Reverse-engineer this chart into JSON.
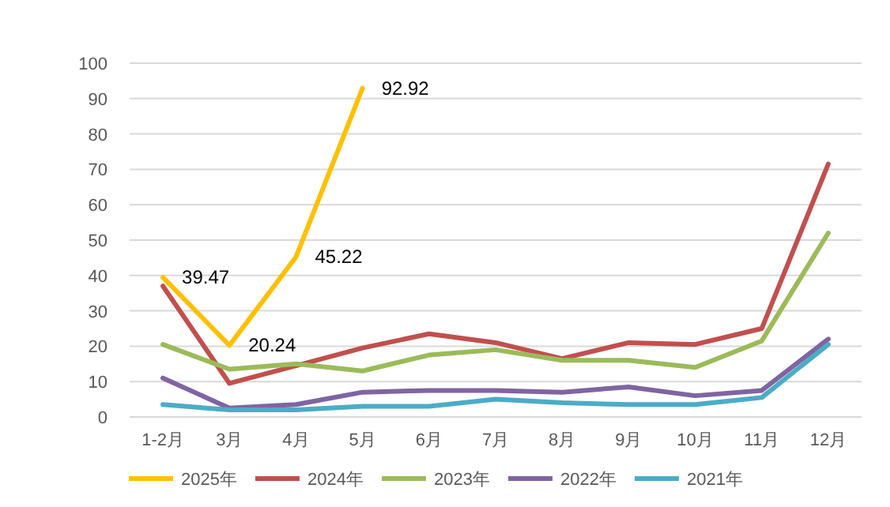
{
  "chart_data": {
    "type": "line",
    "categories": [
      "1-2月",
      "3月",
      "4月",
      "5月",
      "6月",
      "7月",
      "8月",
      "9月",
      "10月",
      "11月",
      "12月"
    ],
    "ylim": [
      0,
      100
    ],
    "yticks": [
      0,
      10,
      20,
      30,
      40,
      50,
      60,
      70,
      80,
      90,
      100
    ],
    "grid": "y",
    "legend": "bottom",
    "marker": "none",
    "line_style": "solid",
    "series": [
      {
        "name": "2025年",
        "color": "#ffc000",
        "values": [
          39.47,
          20.24,
          45.22,
          92.92,
          null,
          null,
          null,
          null,
          null,
          null,
          null
        ],
        "value_labels": [
          "39.47",
          "20.24",
          "45.22",
          "92.92",
          null,
          null,
          null,
          null,
          null,
          null,
          null
        ]
      },
      {
        "name": "2024年",
        "color": "#c0504d",
        "values": [
          37,
          9.5,
          14.5,
          19.5,
          23.5,
          21,
          16.5,
          21,
          20.5,
          25,
          71.5
        ]
      },
      {
        "name": "2023年",
        "color": "#9bbb59",
        "values": [
          20.5,
          13.5,
          15,
          13,
          17.5,
          19,
          16,
          16,
          14,
          21.5,
          52
        ]
      },
      {
        "name": "2022年",
        "color": "#8064a2",
        "values": [
          11,
          2.5,
          3.5,
          7,
          7.5,
          7.5,
          7,
          8.5,
          6,
          7.5,
          22
        ]
      },
      {
        "name": "2021年",
        "color": "#4bacc6",
        "values": [
          3.5,
          2,
          2,
          3,
          3,
          5,
          4,
          3.5,
          3.5,
          5.5,
          20.5
        ]
      }
    ]
  }
}
